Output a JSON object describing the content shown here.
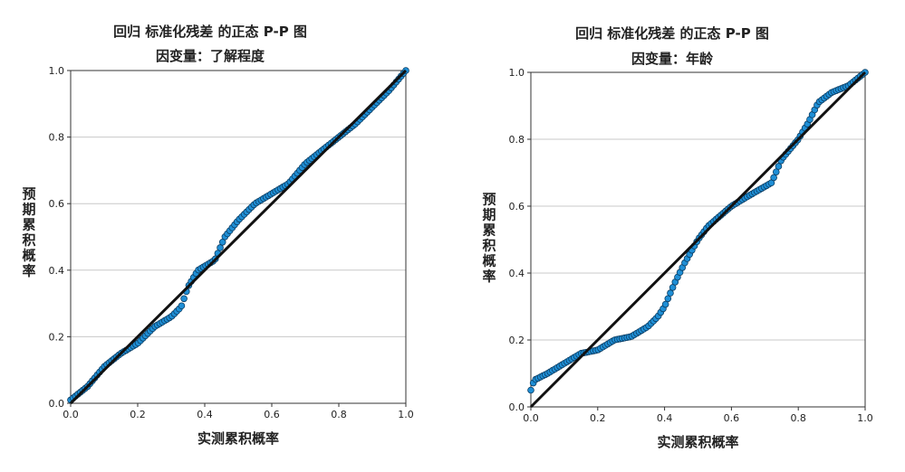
{
  "chart_data": [
    {
      "type": "scatter",
      "title": "回归 标准化残差 的正态 P-P 图",
      "subtitle": "因变量：了解程度",
      "xlabel": "实测累积概率",
      "ylabel": "预期累积概率",
      "xlim": [
        0,
        1
      ],
      "ylim": [
        0,
        1
      ],
      "x_ticks": [
        "0.0",
        "0.2",
        "0.4",
        "0.6",
        "0.8",
        "1.0"
      ],
      "y_ticks": [
        "0.0",
        "0.2",
        "0.4",
        "0.6",
        "0.8",
        "1.0"
      ],
      "grid": "horizontal",
      "point_color": "#1f8fd6",
      "line_color": "#111111",
      "reference_line": [
        [
          0,
          0
        ],
        [
          1,
          1
        ]
      ],
      "curve": [
        [
          0,
          0.01
        ],
        [
          0.05,
          0.05
        ],
        [
          0.1,
          0.11
        ],
        [
          0.15,
          0.15
        ],
        [
          0.2,
          0.18
        ],
        [
          0.25,
          0.23
        ],
        [
          0.3,
          0.26
        ],
        [
          0.33,
          0.29
        ],
        [
          0.35,
          0.35
        ],
        [
          0.38,
          0.4
        ],
        [
          0.43,
          0.43
        ],
        [
          0.46,
          0.5
        ],
        [
          0.5,
          0.55
        ],
        [
          0.55,
          0.6
        ],
        [
          0.6,
          0.63
        ],
        [
          0.65,
          0.66
        ],
        [
          0.7,
          0.72
        ],
        [
          0.75,
          0.76
        ],
        [
          0.8,
          0.8
        ],
        [
          0.85,
          0.84
        ],
        [
          0.9,
          0.89
        ],
        [
          0.95,
          0.94
        ],
        [
          1,
          1
        ]
      ]
    },
    {
      "type": "scatter",
      "title": "回归 标准化残差 的正态 P-P 图",
      "subtitle": "因变量：年龄",
      "xlabel": "实测累积概率",
      "ylabel": "预期累积概率",
      "xlim": [
        0,
        1
      ],
      "ylim": [
        0,
        1
      ],
      "x_ticks": [
        "0.0",
        "0.2",
        "0.4",
        "0.6",
        "0.8",
        "1.0"
      ],
      "y_ticks": [
        "0.0",
        "0.2",
        "0.4",
        "0.6",
        "0.8",
        "1.0"
      ],
      "grid": "horizontal",
      "point_color": "#1f8fd6",
      "line_color": "#111111",
      "reference_line": [
        [
          0,
          0
        ],
        [
          1,
          1
        ]
      ],
      "curve": [
        [
          0,
          0.05
        ],
        [
          0.01,
          0.08
        ],
        [
          0.05,
          0.1
        ],
        [
          0.1,
          0.13
        ],
        [
          0.15,
          0.16
        ],
        [
          0.2,
          0.17
        ],
        [
          0.25,
          0.2
        ],
        [
          0.3,
          0.21
        ],
        [
          0.35,
          0.24
        ],
        [
          0.38,
          0.27
        ],
        [
          0.4,
          0.3
        ],
        [
          0.43,
          0.37
        ],
        [
          0.46,
          0.43
        ],
        [
          0.5,
          0.5
        ],
        [
          0.53,
          0.54
        ],
        [
          0.6,
          0.6
        ],
        [
          0.65,
          0.63
        ],
        [
          0.72,
          0.67
        ],
        [
          0.75,
          0.74
        ],
        [
          0.8,
          0.8
        ],
        [
          0.83,
          0.85
        ],
        [
          0.86,
          0.91
        ],
        [
          0.9,
          0.94
        ],
        [
          0.95,
          0.96
        ],
        [
          1,
          1
        ]
      ]
    }
  ]
}
